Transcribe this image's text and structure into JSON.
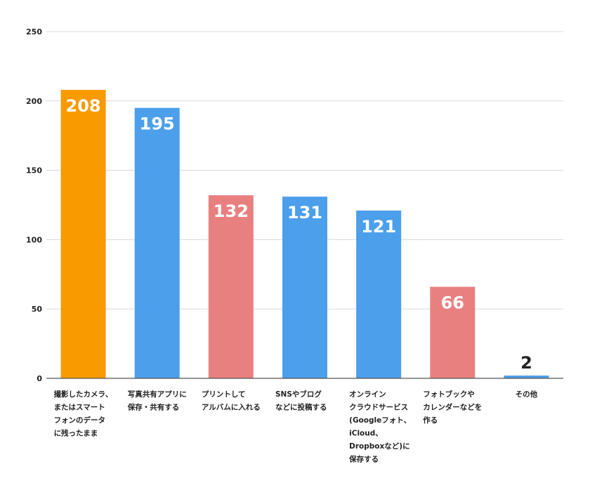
{
  "chart_data": {
    "type": "bar",
    "title": "",
    "xlabel": "",
    "ylabel": "",
    "ylim": [
      0,
      250
    ],
    "yticks": [
      0,
      50,
      100,
      150,
      200,
      250
    ],
    "grid": true,
    "legend": "none",
    "categories": [
      [
        "撮影したカメラ、",
        "またはスマート",
        "フォンのデータ",
        "に残ったまま"
      ],
      [
        "写真共有アプリに",
        "保存・共有する"
      ],
      [
        "プリントして",
        "アルバムに入れる"
      ],
      [
        "SNSやブログ",
        "などに投稿する"
      ],
      [
        "オンライン",
        "クラウドサービス",
        "(Googleフォト、",
        "iCloud、",
        "Dropboxなど)に",
        "保存する"
      ],
      [
        "フォトブックや",
        "カレンダーなどを",
        "作る"
      ],
      [
        "その他"
      ]
    ],
    "values": [
      208,
      195,
      132,
      131,
      121,
      66,
      2
    ],
    "bar_colors": [
      "#f89a00",
      "#4c9feb",
      "#e98080",
      "#4c9feb",
      "#4c9feb",
      "#e98080",
      "#4c9feb"
    ],
    "data_label_colors": [
      "#ffffff",
      "#ffffff",
      "#ffffff",
      "#ffffff",
      "#ffffff",
      "#ffffff",
      "#222222"
    ]
  }
}
